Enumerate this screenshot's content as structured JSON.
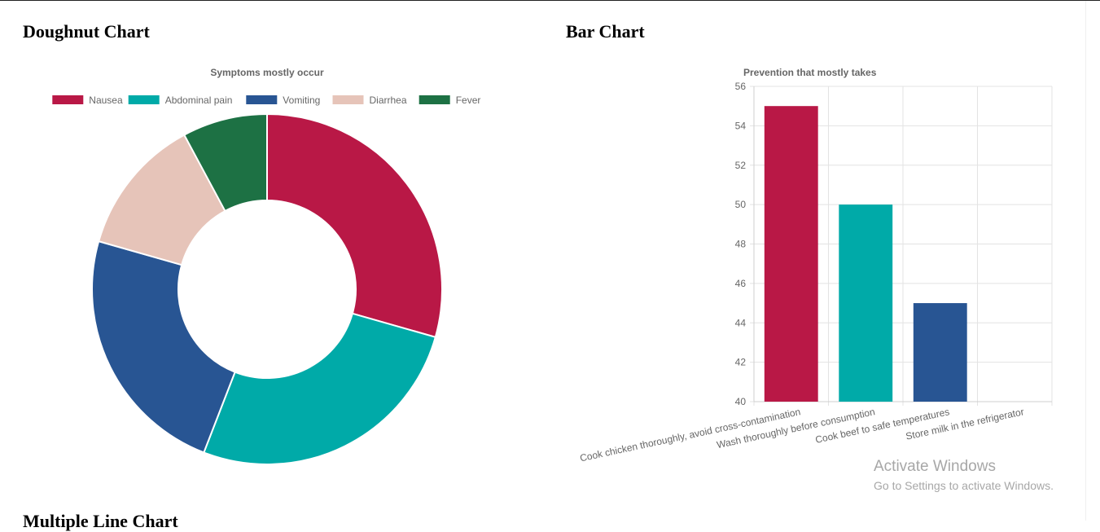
{
  "page": {
    "doughnut_heading": "Doughnut Chart",
    "bar_heading": "Bar Chart",
    "multi_heading": "Multiple Line Chart"
  },
  "watermark": {
    "title": "Activate Windows",
    "subtitle": "Go to Settings to activate Windows."
  },
  "chart_data": [
    {
      "type": "doughnut",
      "title": "Symptoms mostly occur",
      "legend_position": "top",
      "labels": [
        "Nausea",
        "Abdominal pain",
        "Vomiting",
        "Diarrhea",
        "Fever"
      ],
      "values": [
        30,
        27,
        24,
        13,
        8
      ],
      "colors": [
        "#b91846",
        "#00aaa8",
        "#285593",
        "#e6c4b9",
        "#1d7144"
      ]
    },
    {
      "type": "bar",
      "title": "Prevention that mostly takes",
      "categories": [
        "Cook chicken thoroughly, avoid cross-contamination",
        "Wash thoroughly before consumption",
        "Cook beef to safe temperatures",
        "Store milk in the refrigerator"
      ],
      "values": [
        55,
        50,
        45,
        40
      ],
      "colors": [
        "#b91846",
        "#00aaa8",
        "#285593",
        "#e6c4b9"
      ],
      "ylim": [
        40,
        56
      ],
      "yticks": [
        40,
        42,
        44,
        46,
        48,
        50,
        52,
        54,
        56
      ],
      "grid": true,
      "legend": false
    }
  ]
}
